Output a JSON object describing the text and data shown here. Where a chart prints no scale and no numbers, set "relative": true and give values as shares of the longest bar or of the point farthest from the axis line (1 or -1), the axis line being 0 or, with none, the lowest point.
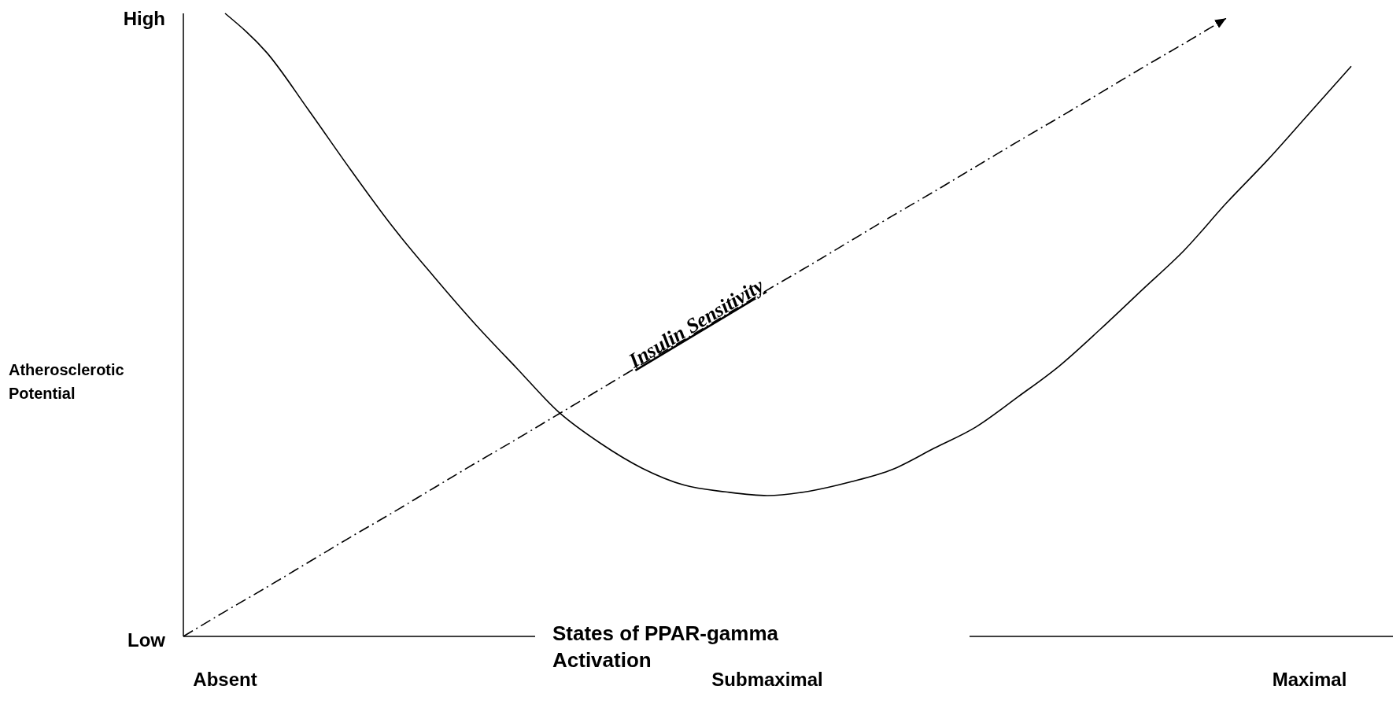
{
  "chart_data": {
    "type": "line",
    "relative": true,
    "xlabel": "States of PPAR-gamma Activation",
    "ylabel": "Atherosclerotic Potential",
    "annotations": [
      "High",
      "Low"
    ],
    "categories": [
      null,
      "Absent",
      null,
      null,
      null,
      null,
      null,
      null,
      null,
      null,
      null,
      null,
      null,
      null,
      "Submaximal",
      null,
      null,
      null,
      null,
      null,
      null,
      null,
      null,
      null,
      null,
      null,
      null,
      "Maximal",
      null,
      null
    ],
    "marker": "none",
    "series": [
      {
        "color": "#000000",
        "line_style": "solid",
        "values": [
          null,
          1.0,
          0.937,
          0.845,
          0.75,
          0.659,
          0.578,
          0.501,
          0.43,
          0.36,
          0.31,
          0.27,
          0.243,
          0.232,
          0.226,
          0.233,
          0.248,
          0.268,
          0.302,
          0.336,
          0.384,
          0.434,
          0.494,
          0.557,
          0.62,
          0.695,
          0.765,
          0.84,
          0.915,
          null
        ]
      },
      {
        "name": "Insulin Sensitivity",
        "color": "#000000",
        "line_style": "dashed",
        "values": [
          0,
          0.04,
          0.079,
          0.119,
          0.159,
          0.198,
          0.238,
          0.278,
          0.317,
          0.357,
          0.397,
          0.437,
          0.476,
          0.516,
          0.556,
          0.595,
          0.635,
          0.675,
          0.714,
          0.754,
          0.794,
          0.833,
          0.873,
          0.913,
          0.952,
          0.992,
          null,
          null,
          null,
          null
        ]
      }
    ]
  }
}
